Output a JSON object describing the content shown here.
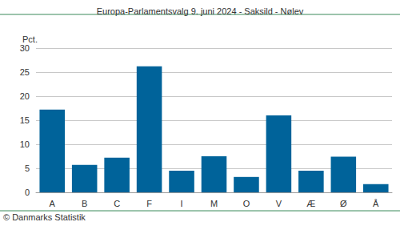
{
  "chart_data": {
    "type": "bar",
    "title": "Europa-Parlamentsvalg 9. juni 2024 - Saksild - Nølev",
    "ylabel": "Pct.",
    "source": "© Danmarks Statistik",
    "categories": [
      "A",
      "B",
      "C",
      "F",
      "I",
      "M",
      "O",
      "V",
      "Æ",
      "Ø",
      "Å"
    ],
    "values": [
      17.2,
      5.7,
      7.2,
      26.2,
      4.5,
      7.5,
      3.2,
      16.0,
      4.5,
      7.4,
      1.7
    ],
    "color": "#00639a",
    "ylim": [
      0,
      30
    ],
    "yticks": [
      0,
      5,
      10,
      15,
      20,
      25,
      30
    ],
    "grid": true
  }
}
